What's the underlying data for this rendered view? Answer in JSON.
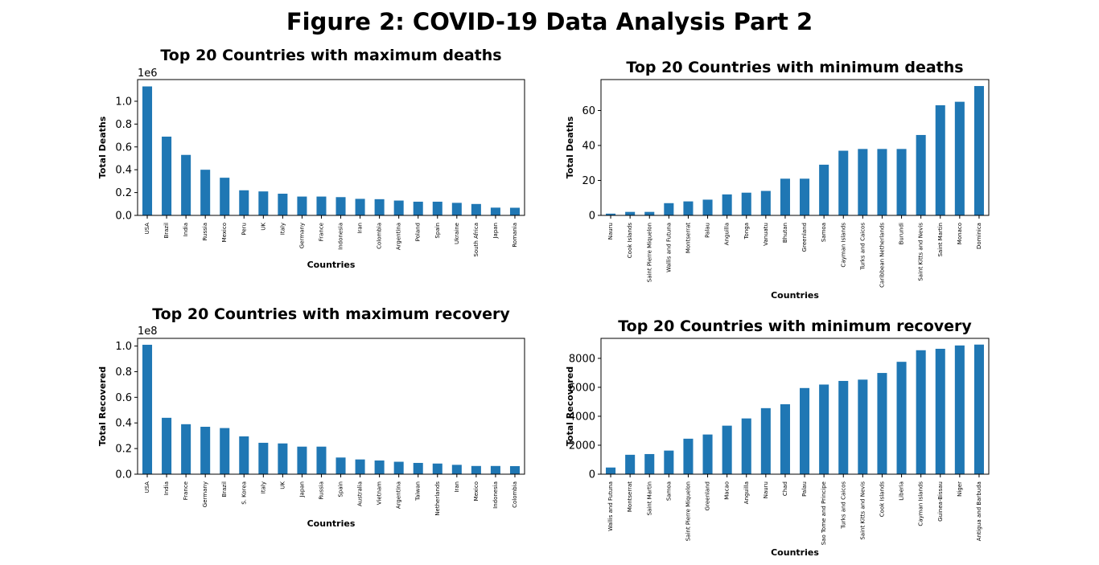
{
  "figure": {
    "title": "Figure 2: COVID-19 Data Analysis Part 2"
  },
  "chart_data": [
    {
      "type": "bar",
      "title": "Top 20 Countries with maximum deaths",
      "xlabel": "Countries",
      "ylabel": "Total Deaths",
      "y_offset_label": "1e6",
      "ylim": [
        0,
        1.19
      ],
      "yticks": [
        0.0,
        0.2,
        0.4,
        0.6,
        0.8,
        1.0
      ],
      "ytick_decimals": 1,
      "grid": false,
      "bar_color": "#1f77b4",
      "categories": [
        "USA",
        "Brazil",
        "India",
        "Russia",
        "Mexico",
        "Peru",
        "UK",
        "Italy",
        "Germany",
        "France",
        "Indonesia",
        "Iran",
        "Colombia",
        "Argentina",
        "Poland",
        "Spain",
        "Ukraine",
        "South Africa",
        "Japan",
        "Romania"
      ],
      "values": [
        1.13,
        0.69,
        0.53,
        0.4,
        0.33,
        0.22,
        0.21,
        0.19,
        0.165,
        0.165,
        0.16,
        0.145,
        0.142,
        0.13,
        0.12,
        0.12,
        0.11,
        0.1,
        0.068,
        0.067
      ]
    },
    {
      "type": "bar",
      "title": "Top 20 Countries with minimum deaths",
      "xlabel": "Countries",
      "ylabel": "Total Deaths",
      "y_offset_label": "",
      "ylim": [
        0,
        77.7
      ],
      "yticks": [
        0,
        20,
        40,
        60
      ],
      "ytick_decimals": 0,
      "grid": false,
      "bar_color": "#1f77b4",
      "categories": [
        "Nauru",
        "Cook Islands",
        "Saint Pierre Miquelon",
        "Wallis and Futuna",
        "Montserrat",
        "Palau",
        "Anguilla",
        "Tonga",
        "Vanuatu",
        "Bhutan",
        "Greenland",
        "Samoa",
        "Cayman Islands",
        "Turks and Caicos",
        "Caribbean Netherlands",
        "Burundi",
        "Saint Kitts and Nevis",
        "Saint Martin",
        "Monaco",
        "Dominica"
      ],
      "values": [
        1,
        2,
        2,
        7,
        8,
        9,
        12,
        13,
        14,
        21,
        21,
        29,
        37,
        38,
        38,
        38,
        46,
        63,
        65,
        74
      ]
    },
    {
      "type": "bar",
      "title": "Top 20 Countries with maximum recovery",
      "xlabel": "Countries",
      "ylabel": "Total Recovered",
      "y_offset_label": "1e8",
      "ylim": [
        0,
        1.06
      ],
      "yticks": [
        0.0,
        0.2,
        0.4,
        0.6,
        0.8,
        1.0
      ],
      "ytick_decimals": 1,
      "grid": false,
      "bar_color": "#1f77b4",
      "categories": [
        "USA",
        "India",
        "France",
        "Germany",
        "Brazil",
        "S. Korea",
        "Italy",
        "UK",
        "Japan",
        "Russia",
        "Spain",
        "Australia",
        "Vietnam",
        "Argentina",
        "Taiwan",
        "Netherlands",
        "Iran",
        "Mexico",
        "Indonesia",
        "Colombia"
      ],
      "values": [
        1.01,
        0.44,
        0.39,
        0.37,
        0.36,
        0.295,
        0.245,
        0.24,
        0.215,
        0.215,
        0.13,
        0.115,
        0.107,
        0.097,
        0.088,
        0.083,
        0.073,
        0.064,
        0.064,
        0.063
      ]
    },
    {
      "type": "bar",
      "title": "Top 20 Countries with minimum recovery",
      "xlabel": "Countries",
      "ylabel": "Total Recovered",
      "y_offset_label": "",
      "ylim": [
        0,
        9380
      ],
      "yticks": [
        0,
        2000,
        4000,
        6000,
        8000
      ],
      "ytick_decimals": 0,
      "grid": false,
      "bar_color": "#1f77b4",
      "categories": [
        "Wallis and Futuna",
        "Montserrat",
        "Saint Martin",
        "Samoa",
        "Saint Pierre Miquelon",
        "Greenland",
        "Macao",
        "Anguilla",
        "Nauru",
        "Chad",
        "Palau",
        "Sao Tome and Principe",
        "Turks and Caicos",
        "Saint Kitts and Nevis",
        "Cook Islands",
        "Liberia",
        "Cayman Islands",
        "Guinea-Bissau",
        "Niger",
        "Antigua and Barbuda"
      ],
      "values": [
        460,
        1340,
        1390,
        1630,
        2450,
        2740,
        3350,
        3850,
        4560,
        4830,
        5950,
        6190,
        6440,
        6530,
        6990,
        7760,
        8560,
        8660,
        8890,
        8950
      ]
    }
  ]
}
